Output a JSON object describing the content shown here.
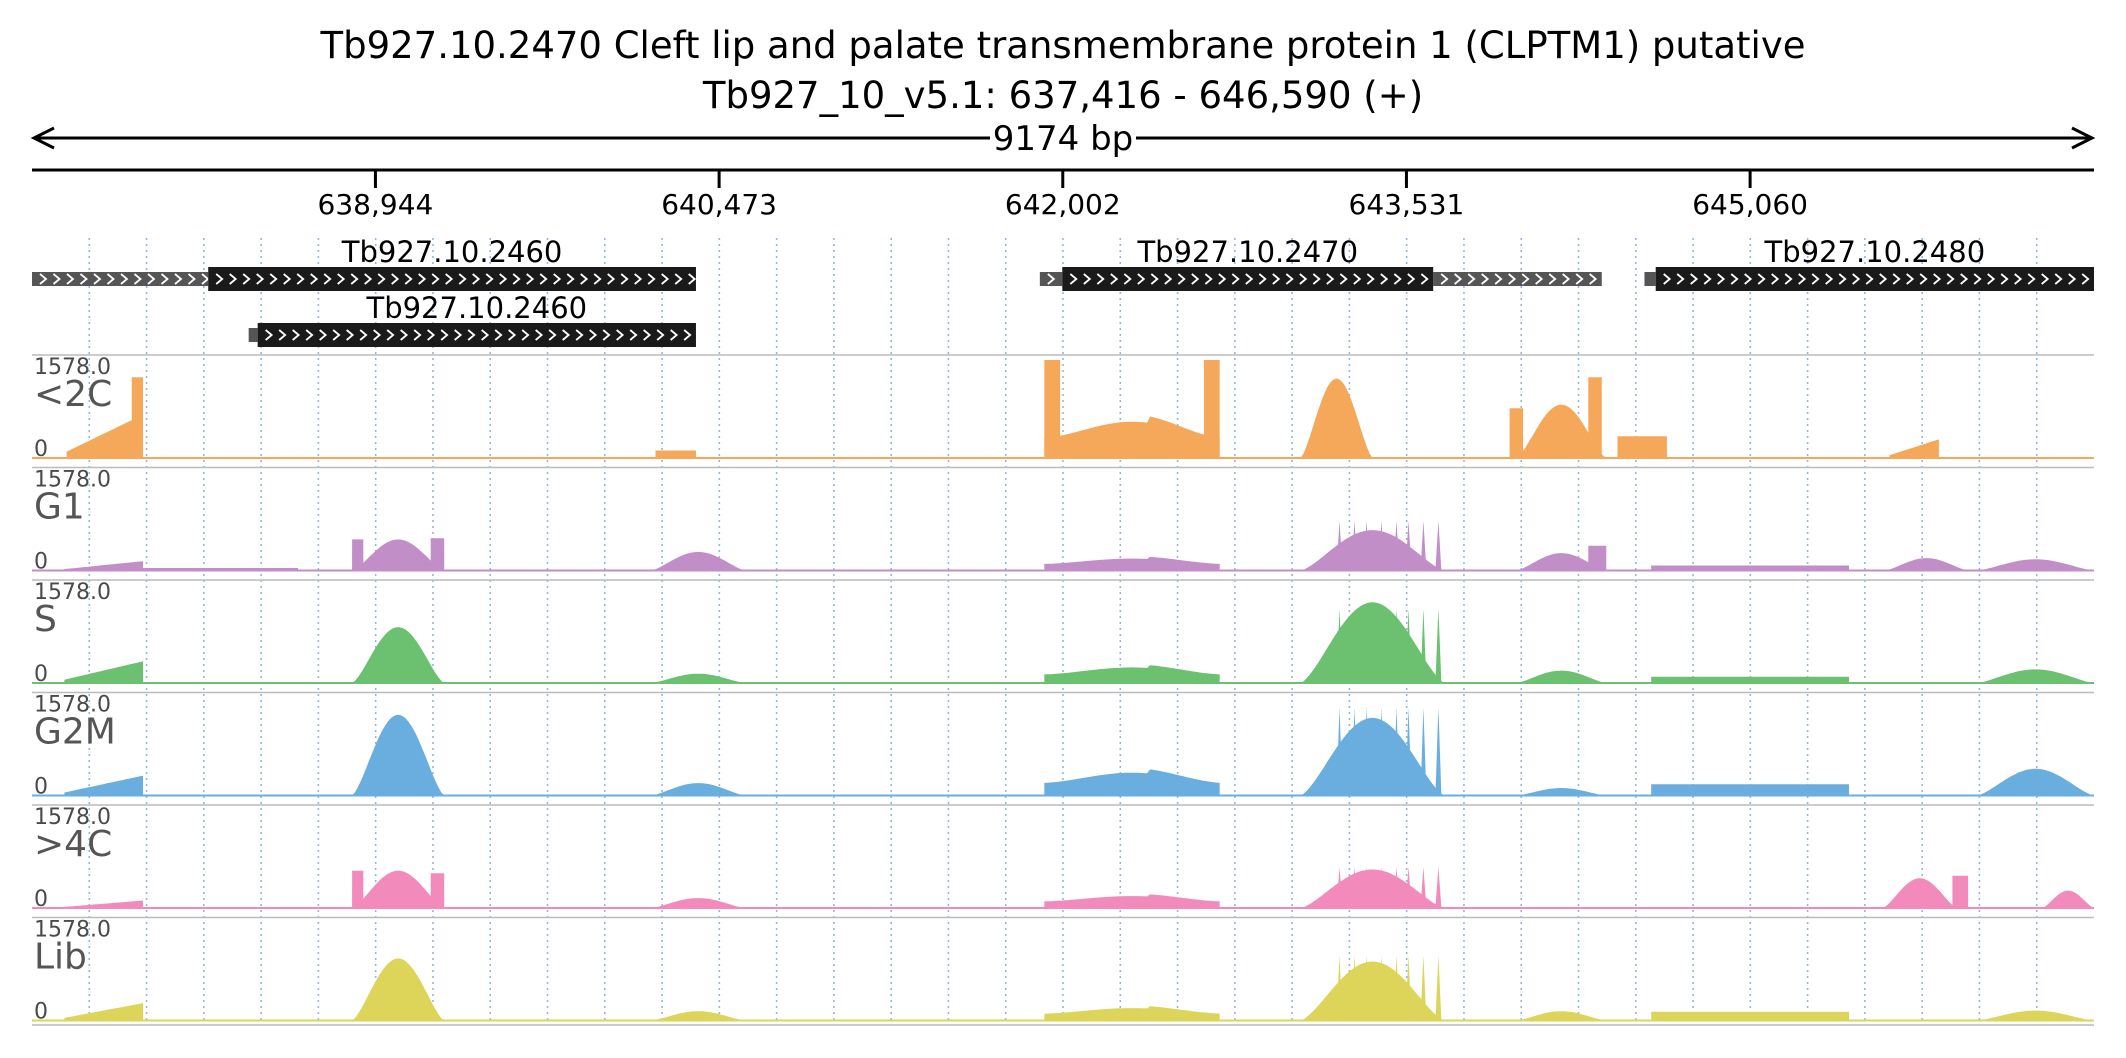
{
  "header": {
    "title": "Tb927.10.2470  Cleft lip and palate transmembrane protein 1 (CLPTM1)  putative",
    "subtitle": "Tb927_10_v5.1: 637,416 - 646,590 (+)",
    "span_label": "9174 bp"
  },
  "chart_data": {
    "type": "area",
    "title": "Tb927.10.2470  Cleft lip and palate transmembrane protein 1 (CLPTM1)  putative",
    "subtitle": "Tb927_10_v5.1: 637,416 - 646,590 (+)",
    "xlim": [
      637416,
      646590
    ],
    "ylim": [
      0,
      1578
    ],
    "x_ticks": [
      638944,
      640473,
      642002,
      643531,
      645060
    ],
    "x_tick_labels": [
      "638,944",
      "640,473",
      "642,002",
      "643,531",
      "645,060"
    ],
    "genes": [
      {
        "name": "Tb927.10.2460",
        "label_visible": true,
        "row": 0,
        "utr": [
          637416,
          638200
        ],
        "cds": [
          638200,
          640370
        ]
      },
      {
        "name": "Tb927.10.2470",
        "label_visible": true,
        "row": 0,
        "utr5": [
          641900,
          642000
        ],
        "cds": [
          642000,
          643650
        ],
        "utr3": [
          643650,
          644400
        ]
      },
      {
        "name": "Tb927.10.2480",
        "label_visible": true,
        "row": 0,
        "utr5": [
          644590,
          644640
        ],
        "cds": [
          644640,
          646590
        ]
      },
      {
        "name": "Tb927.10.2460",
        "label_visible": true,
        "row": 1,
        "utr5": [
          638380,
          638420
        ],
        "cds": [
          638420,
          640370
        ]
      }
    ],
    "tracks": [
      {
        "name": "<2C",
        "max_label": "1578.0",
        "zero_label": "0",
        "color": "#f5a85a",
        "blocks": [
          {
            "x": [
              637570,
              637900
            ],
            "peak": 680,
            "shape": "ramp"
          },
          {
            "x": [
              637860,
              637910
            ],
            "peak": 1300,
            "shape": "flat"
          },
          {
            "x": [
              640190,
              640370
            ],
            "peak": 120,
            "shape": "flat"
          },
          {
            "x": [
              641920,
              642700
            ],
            "peak": 700,
            "shape": "bowl"
          },
          {
            "x": [
              641920,
              641990
            ],
            "peak": 1578,
            "shape": "flat"
          },
          {
            "x": [
              642630,
              642700
            ],
            "peak": 1578,
            "shape": "flat"
          },
          {
            "x": [
              643060,
              643380
            ],
            "peak": 1280,
            "shape": "hump"
          },
          {
            "x": [
              644020,
              644420
            ],
            "peak": 860,
            "shape": "hump"
          },
          {
            "x": [
              643990,
              644050
            ],
            "peak": 800,
            "shape": "flat"
          },
          {
            "x": [
              644340,
              644400
            ],
            "peak": 1300,
            "shape": "flat"
          },
          {
            "x": [
              644470,
              644690
            ],
            "peak": 350,
            "shape": "flat"
          },
          {
            "x": [
              645680,
              645900
            ],
            "peak": 300,
            "shape": "ramp"
          }
        ]
      },
      {
        "name": "G1",
        "max_label": "1578.0",
        "zero_label": "0",
        "color": "#c28ec8",
        "blocks": [
          {
            "x": [
              637560,
              637910
            ],
            "peak": 150,
            "shape": "ramp"
          },
          {
            "x": [
              637910,
              638600
            ],
            "peak": 40,
            "shape": "flat"
          },
          {
            "x": [
              638840,
              639250
            ],
            "peak": 500,
            "shape": "hump"
          },
          {
            "x": [
              638840,
              638890
            ],
            "peak": 500,
            "shape": "flat"
          },
          {
            "x": [
              639190,
              639250
            ],
            "peak": 520,
            "shape": "flat"
          },
          {
            "x": [
              640170,
              640590
            ],
            "peak": 300,
            "shape": "hump"
          },
          {
            "x": [
              641920,
              642700
            ],
            "peak": 230,
            "shape": "bowl"
          },
          {
            "x": [
              643060,
              643700
            ],
            "peak": 650,
            "shape": "hump"
          },
          {
            "x": [
              643060,
              643700
            ],
            "peak": 800,
            "shape": "spikes"
          },
          {
            "x": [
              644020,
              644420
            ],
            "peak": 280,
            "shape": "hump"
          },
          {
            "x": [
              644340,
              644420
            ],
            "peak": 400,
            "shape": "flat"
          },
          {
            "x": [
              644620,
              645500
            ],
            "peak": 80,
            "shape": "flat"
          },
          {
            "x": [
              645660,
              646030
            ],
            "peak": 200,
            "shape": "hump"
          },
          {
            "x": [
              646070,
              646590
            ],
            "peak": 180,
            "shape": "hump"
          }
        ]
      },
      {
        "name": "S",
        "max_label": "1578.0",
        "zero_label": "0",
        "color": "#6cc170",
        "blocks": [
          {
            "x": [
              637560,
              637910
            ],
            "peak": 350,
            "shape": "ramp"
          },
          {
            "x": [
              638840,
              639250
            ],
            "peak": 900,
            "shape": "hump"
          },
          {
            "x": [
              638840,
              639250
            ],
            "peak": 1000,
            "shape": "spikes"
          },
          {
            "x": [
              640170,
              640590
            ],
            "peak": 150,
            "shape": "hump"
          },
          {
            "x": [
              641920,
              642700
            ],
            "peak": 300,
            "shape": "bowl"
          },
          {
            "x": [
              643060,
              643700
            ],
            "peak": 1300,
            "shape": "hump"
          },
          {
            "x": [
              643060,
              643700
            ],
            "peak": 1200,
            "shape": "spikes"
          },
          {
            "x": [
              644020,
              644420
            ],
            "peak": 200,
            "shape": "hump"
          },
          {
            "x": [
              644620,
              645500
            ],
            "peak": 100,
            "shape": "flat"
          },
          {
            "x": [
              646070,
              646590
            ],
            "peak": 220,
            "shape": "hump"
          }
        ]
      },
      {
        "name": "G2M",
        "max_label": "1578.0",
        "zero_label": "0",
        "color": "#6aaee0",
        "blocks": [
          {
            "x": [
              637560,
              637910
            ],
            "peak": 320,
            "shape": "ramp"
          },
          {
            "x": [
              638840,
              639250
            ],
            "peak": 1300,
            "shape": "hump"
          },
          {
            "x": [
              638840,
              639250
            ],
            "peak": 1340,
            "shape": "spikes"
          },
          {
            "x": [
              640170,
              640590
            ],
            "peak": 200,
            "shape": "hump"
          },
          {
            "x": [
              641920,
              642700
            ],
            "peak": 440,
            "shape": "bowl"
          },
          {
            "x": [
              643060,
              643700
            ],
            "peak": 1250,
            "shape": "hump"
          },
          {
            "x": [
              643060,
              643700
            ],
            "peak": 1420,
            "shape": "spikes"
          },
          {
            "x": [
              644020,
              644420
            ],
            "peak": 120,
            "shape": "hump"
          },
          {
            "x": [
              644620,
              645500
            ],
            "peak": 180,
            "shape": "flat"
          },
          {
            "x": [
              646070,
              646590
            ],
            "peak": 430,
            "shape": "hump"
          }
        ]
      },
      {
        "name": ">4C",
        "max_label": "1578.0",
        "zero_label": "0",
        "color": "#f28bbb",
        "blocks": [
          {
            "x": [
              637560,
              637910
            ],
            "peak": 120,
            "shape": "ramp"
          },
          {
            "x": [
              638840,
              639250
            ],
            "peak": 600,
            "shape": "hump"
          },
          {
            "x": [
              638840,
              638890
            ],
            "peak": 600,
            "shape": "flat"
          },
          {
            "x": [
              639190,
              639250
            ],
            "peak": 560,
            "shape": "flat"
          },
          {
            "x": [
              640170,
              640590
            ],
            "peak": 160,
            "shape": "hump"
          },
          {
            "x": [
              641920,
              642700
            ],
            "peak": 230,
            "shape": "bowl"
          },
          {
            "x": [
              643060,
              643700
            ],
            "peak": 620,
            "shape": "hump"
          },
          {
            "x": [
              643060,
              643700
            ],
            "peak": 660,
            "shape": "spikes"
          },
          {
            "x": [
              645650,
              645980
            ],
            "peak": 480,
            "shape": "hump"
          },
          {
            "x": [
              645960,
              646030
            ],
            "peak": 520,
            "shape": "flat"
          },
          {
            "x": [
              646360,
              646590
            ],
            "peak": 280,
            "shape": "hump"
          }
        ]
      },
      {
        "name": "Lib",
        "max_label": "1578.0",
        "zero_label": "0",
        "color": "#ddd55a",
        "blocks": [
          {
            "x": [
              637560,
              637910
            ],
            "peak": 280,
            "shape": "ramp"
          },
          {
            "x": [
              638840,
              639250
            ],
            "peak": 1000,
            "shape": "hump"
          },
          {
            "x": [
              638840,
              639250
            ],
            "peak": 1150,
            "shape": "spikes"
          },
          {
            "x": [
              640170,
              640590
            ],
            "peak": 150,
            "shape": "hump"
          },
          {
            "x": [
              641920,
              642700
            ],
            "peak": 240,
            "shape": "bowl"
          },
          {
            "x": [
              643060,
              643700
            ],
            "peak": 950,
            "shape": "hump"
          },
          {
            "x": [
              643060,
              643700
            ],
            "peak": 1050,
            "shape": "spikes"
          },
          {
            "x": [
              644020,
              644420
            ],
            "peak": 150,
            "shape": "hump"
          },
          {
            "x": [
              644620,
              645500
            ],
            "peak": 140,
            "shape": "flat"
          },
          {
            "x": [
              646070,
              646590
            ],
            "peak": 160,
            "shape": "hump"
          }
        ]
      }
    ]
  }
}
